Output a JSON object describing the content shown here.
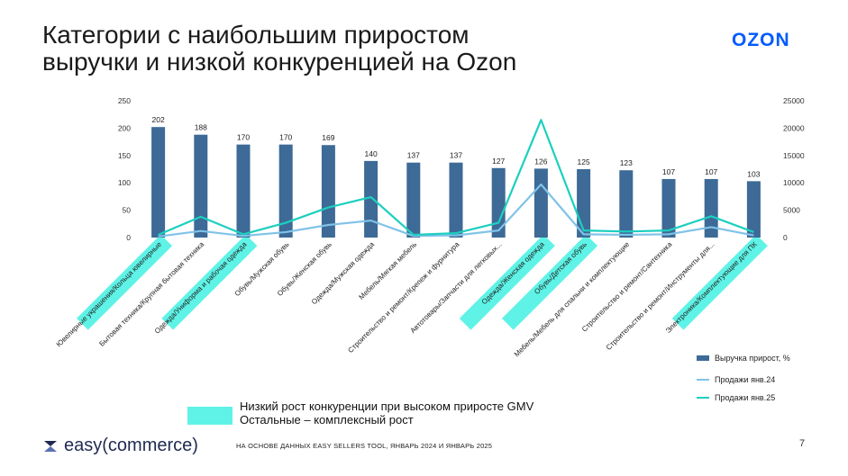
{
  "header": {
    "title_line1": "Категории с наибольшим приростом",
    "title_line2": "выручки и низкой конкуренцией на Ozon",
    "logo": "OZON"
  },
  "chart_data": {
    "type": "bar",
    "categories": [
      "Ювелирные украшения/Кольца ювелирные",
      "Бытовая техника/Крупная бытовая техника",
      "Одежда/Униформа и рабочая одежда",
      "Обувь/Мужская обувь",
      "Обувь/Женская обувь",
      "Одежда/Мужская одежда",
      "Мебель/Мягкая мебель",
      "Строительство и ремонт/Крепеж и фурнитура",
      "Автотовары/Запчасти для легковых...",
      "Одежда/Женская одежда",
      "Обувь/Детская обувь",
      "Мебель/Мебель для спальни и комплектующие",
      "Строительство и ремонт/Сантехника",
      "Строительство и ремонт/Инструменты для...",
      "Электроника/Комплектующие для ПК"
    ],
    "highlighted": [
      0,
      2,
      9,
      10,
      14
    ],
    "highlight_color": "#5ef3e6",
    "series": [
      {
        "name": "Выручка прирост, %",
        "kind": "bar",
        "axis": "left",
        "color": "#3d6a96",
        "values": [
          202,
          188,
          170,
          170,
          169,
          140,
          137,
          137,
          127,
          126,
          125,
          123,
          107,
          107,
          103
        ]
      },
      {
        "name": "Продажи янв.24",
        "kind": "line",
        "axis": "right",
        "color": "#7fc3e8",
        "values": [
          200,
          1200,
          300,
          1000,
          2300,
          3100,
          300,
          400,
          1300,
          9700,
          600,
          500,
          600,
          1900,
          400
        ]
      },
      {
        "name": "Продажи янв.25",
        "kind": "line",
        "axis": "right",
        "color": "#1ccfbf",
        "values": [
          500,
          3800,
          600,
          2700,
          5500,
          7400,
          500,
          800,
          2700,
          21500,
          1300,
          1100,
          1300,
          3900,
          1000
        ]
      }
    ],
    "left_axis": {
      "min": 0,
      "max": 250,
      "ticks": [
        0,
        50,
        100,
        150,
        200,
        250
      ]
    },
    "right_axis": {
      "min": 0,
      "max": 25000,
      "ticks": [
        0,
        5000,
        10000,
        15000,
        20000,
        25000
      ]
    },
    "legend_position": "bottom-right"
  },
  "legend": [
    {
      "label": "Выручка прирост, %",
      "color": "#3d6a96"
    },
    {
      "label": "Продажи янв.24",
      "color": "#7fc3e8"
    },
    {
      "label": "Продажи янв.25",
      "color": "#1ccfbf"
    }
  ],
  "note": {
    "line1": "Низкий рост конкуренции при высоком приросте GMV",
    "line2": "Остальные – комплексный рост",
    "color": "#5ef3e6"
  },
  "footer": {
    "brand": "easy(commerce)",
    "source": "НА ОСНОВЕ ДАННЫХ EASY SELLERS TOOL, ЯНВАРЬ 2024 И ЯНВАРЬ 2025",
    "page": "7"
  }
}
